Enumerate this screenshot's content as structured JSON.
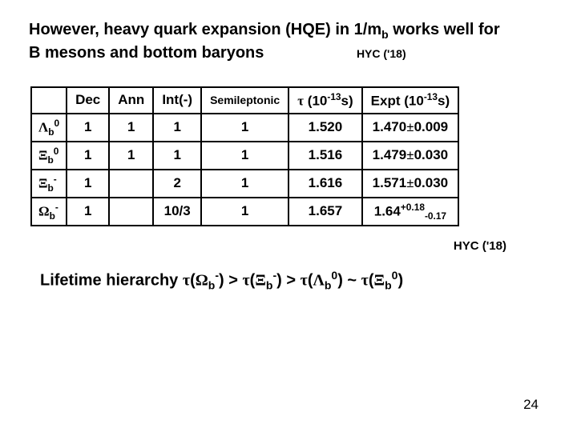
{
  "page_number": "24",
  "title": {
    "line1_a": "However, heavy quark expansion (HQE) in 1/m",
    "line1_b_sub": "b",
    "line1_c": " works well for",
    "line2": "B mesons and bottom baryons",
    "hyc": "HYC ('18)"
  },
  "table": {
    "headers": {
      "c1": "",
      "c2": "Dec",
      "c3": "Ann",
      "c4": "Int(-)",
      "c5": "Semileptonic",
      "c6_tau": "τ",
      "c6_rest": " (10",
      "c6_exp": "-13",
      "c6_tail": "s)",
      "c7_a": "Expt (10",
      "c7_exp": "-13",
      "c7_tail": "s)"
    },
    "rows": [
      {
        "label_sym": "Λ",
        "label_sub": "b",
        "label_sup": "0",
        "dec": "1",
        "ann": "1",
        "int": "1",
        "semi": "1",
        "tau": "1.520",
        "expt_a": "1.470",
        "expt_pm": "±",
        "expt_b": "0.009"
      },
      {
        "label_sym": "Ξ",
        "label_sub": "b",
        "label_sup": "0",
        "dec": "1",
        "ann": "1",
        "int": "1",
        "semi": "1",
        "tau": "1.516",
        "expt_a": "1.479",
        "expt_pm": "±",
        "expt_b": "0.030"
      },
      {
        "label_sym": "Ξ",
        "label_sub": "b",
        "label_sup": "-",
        "dec": "1",
        "ann": "",
        "int": "2",
        "semi": "1",
        "tau": "1.616",
        "expt_a": "1.571",
        "expt_pm": "±",
        "expt_b": "0.030"
      },
      {
        "label_sym": "Ω",
        "label_sub": "b",
        "label_sup": "-",
        "dec": "1",
        "ann": "",
        "int": "10/3",
        "semi": "1",
        "tau": "1.657",
        "expt_a": "1.64",
        "expt_supA": "+0.18",
        "expt_subA": "-0.17"
      }
    ]
  },
  "note_below": "HYC ('18)",
  "hierarchy": {
    "lead": "Lifetime hierarchy  ",
    "tau": "τ",
    "Omega": "Ω",
    "Xi": "Ξ",
    "Lambda": "Λ",
    "b": "b",
    "minus": "-",
    "zero": "0",
    "gt": " > ",
    "sim": " ~ ",
    "open": "(",
    "close": ")"
  }
}
